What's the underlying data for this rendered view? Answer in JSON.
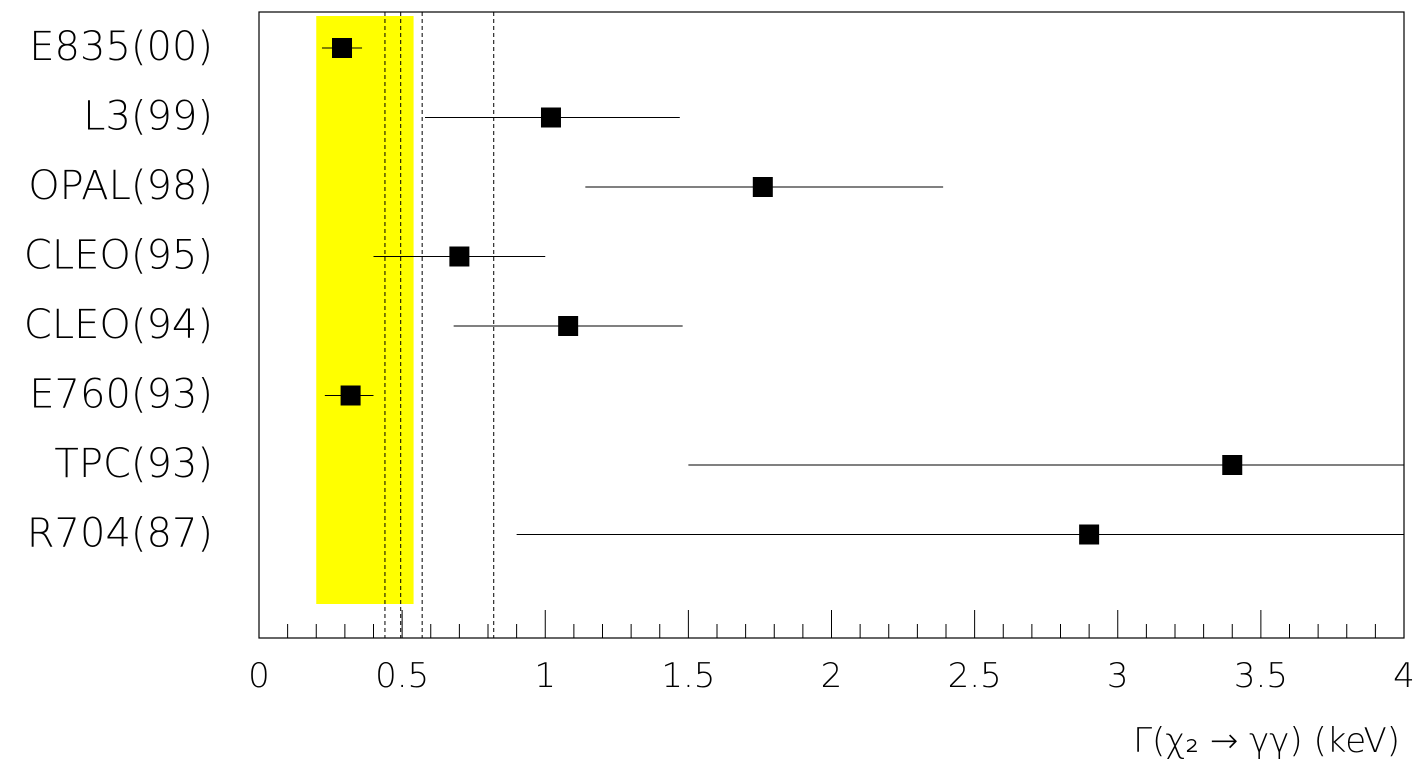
{
  "chart_data": {
    "type": "scatter",
    "xlabel": "Γ(χ₂ → γγ)   (keV)",
    "xlim": [
      0,
      4
    ],
    "x_ticks": [
      "0",
      "0.5",
      "1",
      "1.5",
      "2",
      "2.5",
      "3",
      "3.5",
      "4"
    ],
    "x_tick_values": [
      0,
      0.5,
      1,
      1.5,
      2,
      2.5,
      3,
      3.5,
      4
    ],
    "grid": false,
    "band": {
      "x_from": 0.2,
      "x_to": 0.54,
      "color": "#ffff00"
    },
    "reference_lines": [
      0.44,
      0.495,
      0.57,
      0.82
    ],
    "marker_color": "#000000",
    "points": [
      {
        "label": "E835(00)",
        "value": 0.29,
        "err_low": 0.22,
        "err_high": 0.36
      },
      {
        "label": "L3(99)",
        "value": 1.02,
        "err_low": 0.58,
        "err_high": 1.47
      },
      {
        "label": "OPAL(98)",
        "value": 1.76,
        "err_low": 1.14,
        "err_high": 2.39
      },
      {
        "label": "CLEO(95)",
        "value": 0.7,
        "err_low": 0.4,
        "err_high": 1.0
      },
      {
        "label": "CLEO(94)",
        "value": 1.08,
        "err_low": 0.68,
        "err_high": 1.48
      },
      {
        "label": "E760(93)",
        "value": 0.32,
        "err_low": 0.23,
        "err_high": 0.4
      },
      {
        "label": "TPC(93)",
        "value": 3.4,
        "err_low": 1.5,
        "err_high": 4.0
      },
      {
        "label": "R704(87)",
        "value": 2.9,
        "err_low": 0.9,
        "err_high": 4.0
      }
    ]
  }
}
